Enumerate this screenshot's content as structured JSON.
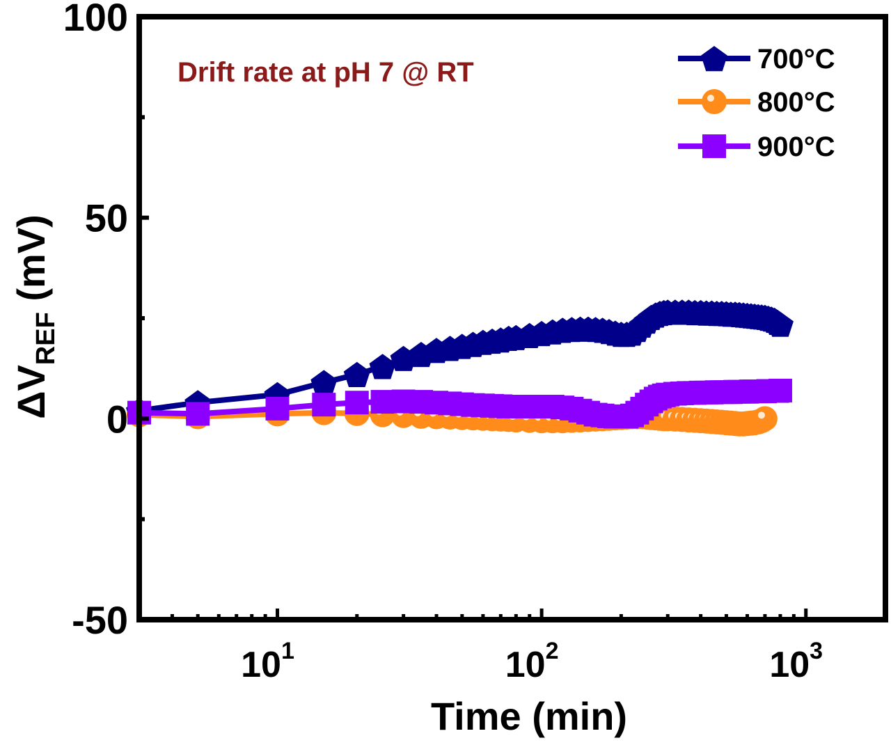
{
  "chart_data": {
    "type": "line",
    "title": "",
    "annotation": "Drift rate at  pH 7 @ RT",
    "annotation_color": "#8b1a1a",
    "xlabel": "Time (min)",
    "ylabel_prefix": "ΔV",
    "ylabel_sub": "REF",
    "ylabel_suffix": " (mV)",
    "xscale": "log",
    "xlim": [
      3,
      2000
    ],
    "ylim": [
      -50,
      100
    ],
    "yticks": [
      {
        "value": -50,
        "label": "-50"
      },
      {
        "value": 0,
        "label": "0"
      },
      {
        "value": 50,
        "label": "50"
      },
      {
        "value": 100,
        "label": "100"
      }
    ],
    "xticks": [
      {
        "value": 10,
        "base": "10",
        "exp": "1"
      },
      {
        "value": 100,
        "base": "10",
        "exp": "2"
      },
      {
        "value": 1000,
        "base": "10",
        "exp": "3"
      }
    ],
    "legend_position": "top-right",
    "series": [
      {
        "name": "700°C",
        "color": "#00008b",
        "marker": "pentagon",
        "x": [
          3,
          5,
          10,
          15,
          20,
          25,
          30,
          35,
          40,
          45,
          50,
          55,
          60,
          65,
          70,
          75,
          80,
          90,
          100,
          110,
          120,
          130,
          140,
          150,
          160,
          170,
          180,
          190,
          200,
          210,
          220,
          230,
          240,
          250,
          260,
          270,
          280,
          290,
          300,
          320,
          340,
          360,
          380,
          400,
          420,
          440,
          460,
          480,
          500,
          520,
          540,
          560,
          580,
          600,
          620,
          640,
          660,
          680,
          700,
          720,
          740,
          760,
          780,
          800
        ],
        "y": [
          2,
          4,
          6,
          9,
          11,
          13,
          15,
          16,
          17,
          17.5,
          18,
          18.5,
          19,
          19.3,
          19.6,
          20,
          20.2,
          20.7,
          21.2,
          21.6,
          22,
          22.2,
          22.3,
          22.3,
          22.2,
          22,
          21.7,
          21.3,
          21,
          21,
          21.3,
          22.2,
          23.3,
          24.3,
          25.2,
          25.8,
          26.2,
          26.4,
          26.5,
          26.5,
          26.5,
          26.5,
          26.4,
          26.4,
          26.3,
          26.3,
          26.2,
          26.2,
          26.1,
          26,
          26,
          25.9,
          25.8,
          25.7,
          25.6,
          25.5,
          25.4,
          25.3,
          25.2,
          25,
          24.8,
          24.5,
          24,
          23.5
        ]
      },
      {
        "name": "800°C",
        "color": "#ff8c1a",
        "marker": "circle",
        "x": [
          3,
          5,
          10,
          15,
          20,
          25,
          30,
          35,
          40,
          45,
          50,
          55,
          60,
          65,
          70,
          75,
          80,
          90,
          100,
          110,
          120,
          130,
          140,
          150,
          160,
          170,
          180,
          190,
          200,
          210,
          220,
          230,
          240,
          250,
          260,
          270,
          280,
          290,
          300,
          320,
          340,
          360,
          380,
          400,
          420,
          440,
          460,
          480,
          500,
          520,
          540,
          560,
          580,
          600,
          620,
          640,
          660,
          680,
          700
        ],
        "y": [
          1,
          0.5,
          1.2,
          1.5,
          1.3,
          1.0,
          0.8,
          0.6,
          0.5,
          0.4,
          0.3,
          0.2,
          0.1,
          0,
          -0.1,
          -0.2,
          -0.3,
          -0.4,
          -0.5,
          -0.5,
          -0.5,
          -0.4,
          -0.3,
          -0.2,
          -0.1,
          0,
          0.1,
          0.2,
          0.3,
          0.4,
          0.5,
          0.5,
          0.5,
          0.4,
          0.3,
          0.2,
          0.1,
          0,
          0,
          -0.1,
          -0.2,
          -0.3,
          -0.4,
          -0.5,
          -0.6,
          -0.7,
          -0.8,
          -0.9,
          -1.0,
          -1.1,
          -1.2,
          -1.3,
          -1.3,
          -1.2,
          -1.1,
          -1.0,
          -0.8,
          -0.5,
          0
        ]
      },
      {
        "name": "900°C",
        "color": "#8b00ff",
        "marker": "square",
        "x": [
          3,
          5,
          10,
          15,
          20,
          25,
          30,
          35,
          40,
          45,
          50,
          55,
          60,
          65,
          70,
          75,
          80,
          90,
          100,
          110,
          120,
          130,
          140,
          150,
          160,
          170,
          180,
          190,
          200,
          210,
          220,
          230,
          240,
          250,
          260,
          270,
          280,
          290,
          300,
          320,
          340,
          360,
          380,
          400,
          420,
          440,
          460,
          480,
          500,
          520,
          540,
          560,
          580,
          600,
          620,
          640,
          660,
          680,
          700,
          720,
          740,
          760,
          780,
          800
        ],
        "y": [
          1.5,
          1.2,
          2.5,
          3.5,
          4,
          4.2,
          4.3,
          4.2,
          4.0,
          3.8,
          3.6,
          3.4,
          3.3,
          3.2,
          3.1,
          3.0,
          3.0,
          3.0,
          3.0,
          3.0,
          2.8,
          2.5,
          2.0,
          1.5,
          1.0,
          0.8,
          0.6,
          0.5,
          0.5,
          0.5,
          0.8,
          1.5,
          2.5,
          3.5,
          4.3,
          5.0,
          5.5,
          5.8,
          6.0,
          6.2,
          6.3,
          6.4,
          6.4,
          6.5,
          6.5,
          6.5,
          6.6,
          6.6,
          6.6,
          6.6,
          6.7,
          6.7,
          6.7,
          6.7,
          6.8,
          6.8,
          6.8,
          6.8,
          6.8,
          6.9,
          6.9,
          6.9,
          6.9,
          7.0
        ]
      }
    ]
  }
}
